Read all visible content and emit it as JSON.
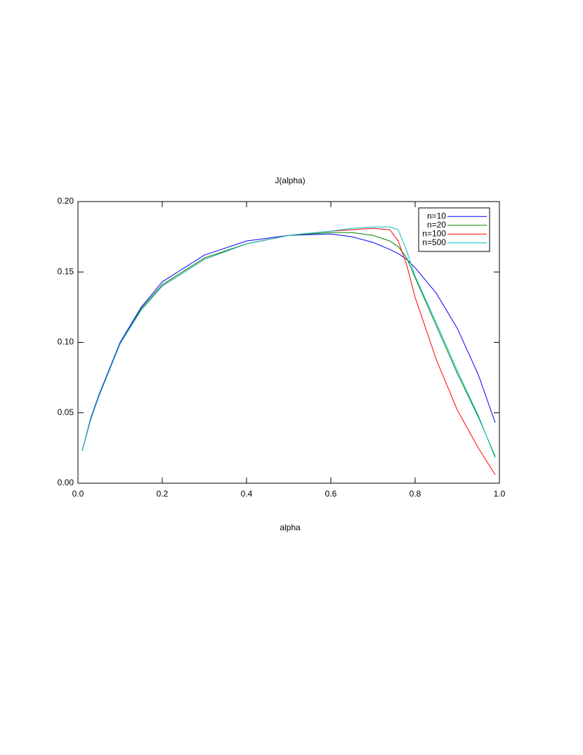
{
  "chart_data": {
    "type": "line",
    "title": "J(alpha)",
    "x_label": "alpha",
    "x": [
      0.01,
      0.03,
      0.05,
      0.1,
      0.15,
      0.2,
      0.3,
      0.4,
      0.5,
      0.6,
      0.65,
      0.7,
      0.74,
      0.76,
      0.78,
      0.8,
      0.85,
      0.9,
      0.95,
      0.99
    ],
    "series": [
      {
        "name": "n=10",
        "color": "#0000ff",
        "values": [
          0.023,
          0.046,
          0.063,
          0.1,
          0.125,
          0.143,
          0.162,
          0.172,
          0.176,
          0.177,
          0.175,
          0.171,
          0.166,
          0.163,
          0.159,
          0.153,
          0.135,
          0.11,
          0.077,
          0.043
        ]
      },
      {
        "name": "n=20",
        "color": "#008000",
        "values": [
          0.023,
          0.045,
          0.062,
          0.099,
          0.124,
          0.141,
          0.16,
          0.17,
          0.176,
          0.178,
          0.178,
          0.176,
          0.172,
          0.168,
          0.16,
          0.146,
          0.112,
          0.078,
          0.047,
          0.019
        ]
      },
      {
        "name": "n=100",
        "color": "#ff0000",
        "values": [
          0.023,
          0.045,
          0.062,
          0.099,
          0.123,
          0.14,
          0.159,
          0.17,
          0.176,
          0.179,
          0.18,
          0.181,
          0.18,
          0.172,
          0.155,
          0.132,
          0.088,
          0.052,
          0.025,
          0.006
        ]
      },
      {
        "name": "n=500",
        "color": "#00bfbf",
        "values": [
          0.023,
          0.045,
          0.062,
          0.099,
          0.123,
          0.14,
          0.159,
          0.17,
          0.176,
          0.179,
          0.181,
          0.182,
          0.182,
          0.18,
          0.165,
          0.147,
          0.114,
          0.08,
          0.048,
          0.018
        ]
      }
    ],
    "xlim": [
      0,
      1
    ],
    "ylim": [
      0,
      0.2
    ],
    "xticks": [
      {
        "value": 0,
        "label": "0.0"
      },
      {
        "value": 0.2,
        "label": "0.2"
      },
      {
        "value": 0.4,
        "label": "0.4"
      },
      {
        "value": 0.6,
        "label": "0.6"
      },
      {
        "value": 0.8,
        "label": "0.8"
      },
      {
        "value": 1,
        "label": "1.0"
      }
    ],
    "yticks": [
      {
        "value": 0,
        "label": "0.00"
      },
      {
        "value": 0.05,
        "label": "0.05"
      },
      {
        "value": 0.1,
        "label": "0.10"
      },
      {
        "value": 0.15,
        "label": "0.15"
      },
      {
        "value": 0.2,
        "label": "0.20"
      }
    ],
    "legend": "upper right"
  }
}
